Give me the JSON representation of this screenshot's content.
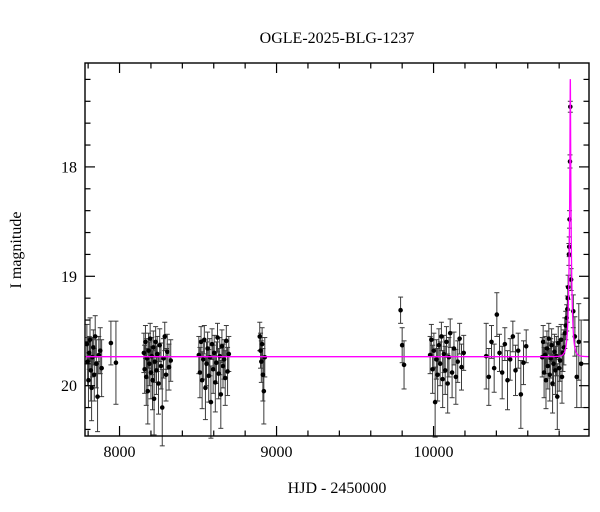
{
  "title": "OGLE-2025-BLG-1237",
  "chart_data": {
    "type": "scatter",
    "title": "OGLE-2025-BLG-1237",
    "xlabel": "HJD - 2450000",
    "ylabel": "I magnitude",
    "xlim": [
      7780,
      10990
    ],
    "ylim_top_mag": 17.05,
    "ylim_bottom_mag": 20.46,
    "y_axis_inverted": true,
    "grid": false,
    "legend": "none",
    "x_major_ticks": [
      8000,
      9000,
      10000
    ],
    "x_tick_labels": [
      "8000",
      "9000",
      "10000"
    ],
    "x_minor_step": 200,
    "y_major_ticks": [
      18,
      19,
      20
    ],
    "y_tick_labels": [
      "18",
      "19",
      "20"
    ],
    "y_minor_step": 0.2,
    "point_color": "#000000",
    "errorbar_color": "#3a3a3a",
    "model_color": "#ff00ff",
    "frame_color": "#000000",
    "model": {
      "kind": "paczynski",
      "I0": 19.735,
      "t0": 10871,
      "tE": 16,
      "u0": 0.097
    },
    "points_format": [
      "hjd_minus_2450000",
      "I_mag",
      "err_mag"
    ],
    "points": [
      [
        7792,
        19.62,
        0.18
      ],
      [
        7797,
        19.78,
        0.22
      ],
      [
        7802,
        19.95,
        0.25
      ],
      [
        7807,
        19.7,
        0.15
      ],
      [
        7812,
        19.58,
        0.2
      ],
      [
        7817,
        19.86,
        0.28
      ],
      [
        7822,
        20.02,
        0.3
      ],
      [
        7827,
        19.74,
        0.18
      ],
      [
        7833,
        19.65,
        0.16
      ],
      [
        7839,
        19.9,
        0.24
      ],
      [
        7845,
        19.55,
        0.19
      ],
      [
        7852,
        19.8,
        0.22
      ],
      [
        7860,
        20.1,
        0.32
      ],
      [
        7868,
        19.72,
        0.17
      ],
      [
        7877,
        19.68,
        0.21
      ],
      [
        7886,
        19.84,
        0.26
      ],
      [
        7945,
        19.61,
        0.2
      ],
      [
        7977,
        19.79,
        0.38
      ],
      [
        8155,
        19.7,
        0.18
      ],
      [
        8160,
        19.85,
        0.22
      ],
      [
        8165,
        19.6,
        0.15
      ],
      [
        8170,
        19.92,
        0.26
      ],
      [
        8175,
        19.75,
        0.18
      ],
      [
        8180,
        20.05,
        0.3
      ],
      [
        8185,
        19.68,
        0.16
      ],
      [
        8190,
        19.8,
        0.2
      ],
      [
        8195,
        19.57,
        0.14
      ],
      [
        8200,
        19.88,
        0.24
      ],
      [
        8205,
        19.73,
        0.17
      ],
      [
        8210,
        19.95,
        0.27
      ],
      [
        8215,
        19.65,
        0.15
      ],
      [
        8220,
        20.12,
        0.33
      ],
      [
        8225,
        19.78,
        0.19
      ],
      [
        8230,
        19.6,
        0.14
      ],
      [
        8235,
        19.86,
        0.22
      ],
      [
        8240,
        19.71,
        0.16
      ],
      [
        8248,
        19.98,
        0.28
      ],
      [
        8256,
        19.63,
        0.15
      ],
      [
        8264,
        19.82,
        0.21
      ],
      [
        8272,
        20.2,
        0.35
      ],
      [
        8280,
        19.75,
        0.18
      ],
      [
        8288,
        19.55,
        0.13
      ],
      [
        8296,
        19.9,
        0.24
      ],
      [
        8304,
        19.69,
        0.16
      ],
      [
        8315,
        19.83,
        0.21
      ],
      [
        8326,
        19.77,
        0.19
      ],
      [
        8505,
        19.72,
        0.17
      ],
      [
        8512,
        19.88,
        0.23
      ],
      [
        8519,
        19.6,
        0.14
      ],
      [
        8526,
        19.95,
        0.26
      ],
      [
        8533,
        19.76,
        0.18
      ],
      [
        8540,
        19.58,
        0.13
      ],
      [
        8547,
        20.02,
        0.29
      ],
      [
        8554,
        19.8,
        0.2
      ],
      [
        8561,
        19.66,
        0.15
      ],
      [
        8568,
        19.91,
        0.24
      ],
      [
        8575,
        19.74,
        0.17
      ],
      [
        8582,
        20.15,
        0.33
      ],
      [
        8589,
        19.62,
        0.14
      ],
      [
        8596,
        19.85,
        0.22
      ],
      [
        8603,
        19.7,
        0.16
      ],
      [
        8610,
        19.97,
        0.27
      ],
      [
        8617,
        19.79,
        0.19
      ],
      [
        8624,
        19.56,
        0.13
      ],
      [
        8631,
        19.89,
        0.23
      ],
      [
        8638,
        19.73,
        0.17
      ],
      [
        8645,
        20.08,
        0.31
      ],
      [
        8652,
        19.64,
        0.15
      ],
      [
        8659,
        19.82,
        0.2
      ],
      [
        8666,
        19.76,
        0.18
      ],
      [
        8673,
        19.93,
        0.25
      ],
      [
        8680,
        19.59,
        0.14
      ],
      [
        8688,
        19.87,
        0.22
      ],
      [
        8696,
        19.71,
        0.16
      ],
      [
        8893,
        19.55,
        0.13
      ],
      [
        8898,
        19.68,
        0.16
      ],
      [
        8903,
        19.78,
        0.19
      ],
      [
        8908,
        19.62,
        0.15
      ],
      [
        8913,
        19.9,
        0.24
      ],
      [
        8919,
        20.05,
        0.3
      ],
      [
        8925,
        19.74,
        0.18
      ],
      [
        9790,
        19.31,
        0.12
      ],
      [
        9800,
        19.63,
        0.16
      ],
      [
        9812,
        19.81,
        0.22
      ],
      [
        9978,
        19.72,
        0.17
      ],
      [
        9986,
        19.58,
        0.14
      ],
      [
        9994,
        19.85,
        0.22
      ],
      [
        10002,
        19.68,
        0.16
      ],
      [
        10010,
        20.15,
        0.32
      ],
      [
        10018,
        19.76,
        0.18
      ],
      [
        10026,
        19.9,
        0.24
      ],
      [
        10034,
        19.63,
        0.15
      ],
      [
        10042,
        19.8,
        0.2
      ],
      [
        10050,
        19.55,
        0.13
      ],
      [
        10058,
        19.94,
        0.26
      ],
      [
        10066,
        19.71,
        0.17
      ],
      [
        10074,
        19.86,
        0.22
      ],
      [
        10082,
        19.6,
        0.14
      ],
      [
        10090,
        19.98,
        0.27
      ],
      [
        10098,
        19.74,
        0.18
      ],
      [
        10106,
        19.52,
        0.13
      ],
      [
        10118,
        19.88,
        0.23
      ],
      [
        10130,
        19.66,
        0.15
      ],
      [
        10142,
        19.92,
        0.25
      ],
      [
        10154,
        19.78,
        0.19
      ],
      [
        10166,
        19.57,
        0.14
      ],
      [
        10178,
        19.83,
        0.21
      ],
      [
        10192,
        19.7,
        0.16
      ],
      [
        10335,
        19.73,
        0.3
      ],
      [
        10352,
        19.92,
        0.26
      ],
      [
        10369,
        19.6,
        0.15
      ],
      [
        10386,
        19.84,
        0.22
      ],
      [
        10403,
        19.35,
        0.2
      ],
      [
        10420,
        19.7,
        0.17
      ],
      [
        10437,
        19.88,
        0.24
      ],
      [
        10454,
        19.62,
        0.15
      ],
      [
        10471,
        19.95,
        0.27
      ],
      [
        10488,
        19.76,
        0.19
      ],
      [
        10505,
        19.55,
        0.14
      ],
      [
        10522,
        19.86,
        0.23
      ],
      [
        10539,
        19.68,
        0.16
      ],
      [
        10556,
        20.08,
        0.31
      ],
      [
        10573,
        19.79,
        0.2
      ],
      [
        10590,
        19.64,
        0.15
      ],
      [
        10692,
        19.74,
        0.18
      ],
      [
        10698,
        19.6,
        0.15
      ],
      [
        10704,
        19.88,
        0.23
      ],
      [
        10710,
        19.72,
        0.17
      ],
      [
        10716,
        19.95,
        0.26
      ],
      [
        10722,
        19.66,
        0.16
      ],
      [
        10728,
        19.82,
        0.21
      ],
      [
        10734,
        19.57,
        0.14
      ],
      [
        10740,
        19.9,
        0.24
      ],
      [
        10746,
        19.75,
        0.18
      ],
      [
        10752,
        19.63,
        0.15
      ],
      [
        10758,
        19.98,
        0.27
      ],
      [
        10764,
        19.8,
        0.2
      ],
      [
        10770,
        19.69,
        0.16
      ],
      [
        10776,
        19.86,
        0.22
      ],
      [
        10782,
        19.73,
        0.18
      ],
      [
        10788,
        20.1,
        0.3
      ],
      [
        10794,
        19.61,
        0.15
      ],
      [
        10800,
        19.84,
        0.21
      ],
      [
        10806,
        19.77,
        0.19
      ],
      [
        10812,
        19.58,
        0.14
      ],
      [
        10818,
        19.92,
        0.24
      ],
      [
        10824,
        19.7,
        0.17
      ],
      [
        10830,
        19.65,
        0.16
      ],
      [
        10836,
        19.52,
        0.14
      ],
      [
        10842,
        19.45,
        0.13
      ],
      [
        10848,
        19.38,
        0.12
      ],
      [
        10852,
        19.3,
        0.12
      ],
      [
        10855,
        19.2,
        0.11
      ],
      [
        10857,
        19.1,
        0.11
      ],
      [
        10862,
        18.8,
        0.1
      ],
      [
        10864,
        18.73,
        0.09
      ],
      [
        10866,
        18.48,
        0.08
      ],
      [
        10869,
        17.95,
        0.06
      ],
      [
        10871,
        17.45,
        0.05
      ],
      [
        10876,
        19.03,
        0.1
      ],
      [
        10890,
        19.32,
        0.15
      ],
      [
        10900,
        19.55,
        0.18
      ],
      [
        10912,
        19.92,
        0.28
      ],
      [
        10925,
        19.6,
        0.35
      ],
      [
        10940,
        19.8,
        0.4
      ]
    ]
  }
}
